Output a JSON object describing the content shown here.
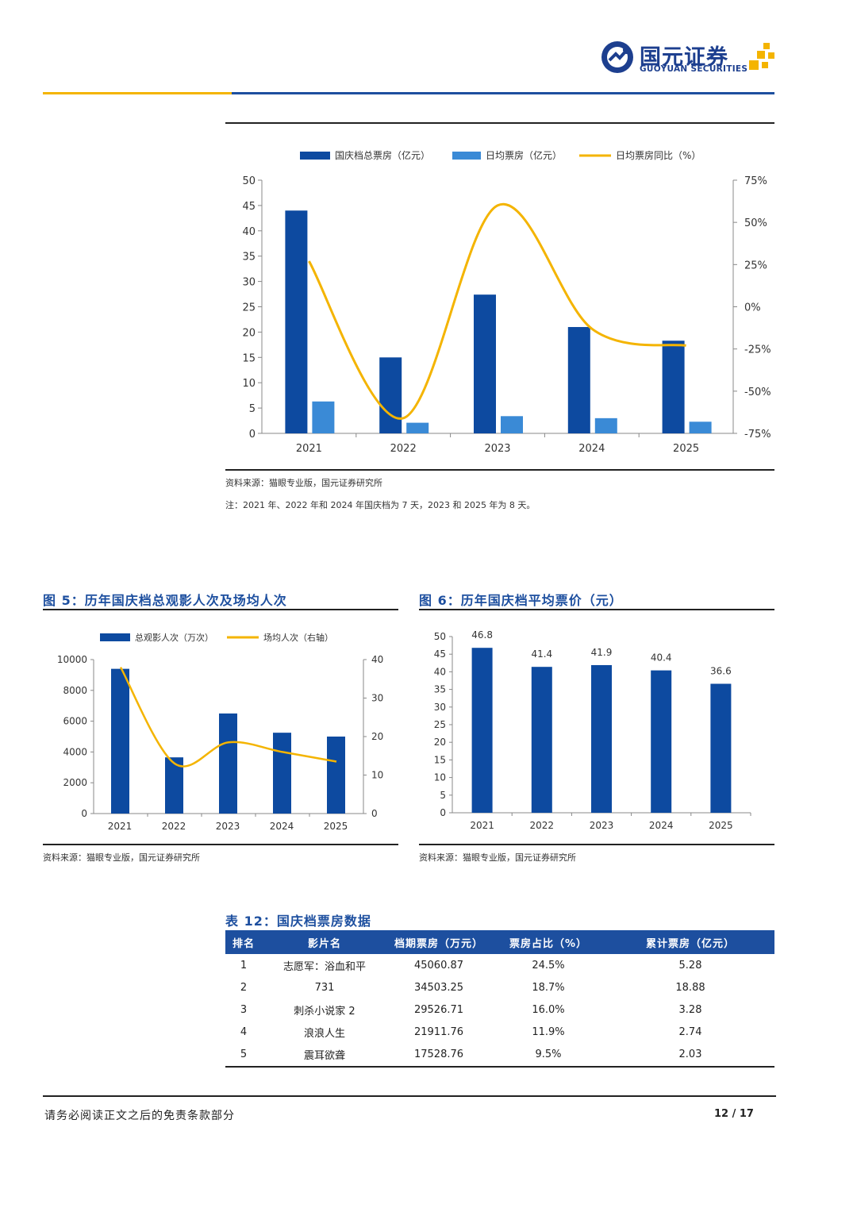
{
  "header": {
    "logo_cn": "国元证券",
    "logo_en": "GUOYUAN SECURITIES",
    "colors": {
      "brand_blue": "#1d4f9f",
      "gold": "#f4b400",
      "light_blue": "#3a8ad6"
    }
  },
  "top_chart": {
    "source": "资料来源：猫眼专业版，国元证券研究所",
    "note": "注：2021 年、2022 年和 2024 年国庆档为 7 天，2023 和 2025 年为 8 天。"
  },
  "fig5": {
    "title": "图 5：历年国庆档总观影人次及场均人次",
    "source": "资料来源：猫眼专业版，国元证券研究所"
  },
  "fig6": {
    "title": "图 6：历年国庆档平均票价（元）",
    "source": "资料来源：猫眼专业版，国元证券研究所"
  },
  "table12": {
    "title": "表 12：国庆档票房数据",
    "columns": [
      "排名",
      "影片名",
      "档期票房（万元）",
      "票房占比（%）",
      "累计票房（亿元）"
    ],
    "rows": [
      [
        "1",
        "志愿军：浴血和平",
        "45060.87",
        "24.5%",
        "5.28"
      ],
      [
        "2",
        "731",
        "34503.25",
        "18.7%",
        "18.88"
      ],
      [
        "3",
        "刺杀小说家 2",
        "29526.71",
        "16.0%",
        "3.28"
      ],
      [
        "4",
        "浪浪人生",
        "21911.76",
        "11.9%",
        "2.74"
      ],
      [
        "5",
        "震耳欲聋",
        "17528.76",
        "9.5%",
        "2.03"
      ]
    ]
  },
  "footer": {
    "disclaimer": "请务必阅读正文之后的免责条款部分",
    "page": "12 / 17"
  },
  "chart_data": [
    {
      "type": "bar",
      "categories": [
        "2021",
        "2022",
        "2023",
        "2024",
        "2025"
      ],
      "series": [
        {
          "name": "国庆档总票房（亿元）",
          "values": [
            44.0,
            15.0,
            27.4,
            21.0,
            18.3
          ],
          "color": "#0d4aa0",
          "axis": "left"
        },
        {
          "name": "日均票房（亿元）",
          "values": [
            6.3,
            2.1,
            3.4,
            3.0,
            2.3
          ],
          "color": "#3a8ad6",
          "axis": "left"
        },
        {
          "name": "日均票房同比（%）",
          "type": "line",
          "values": [
            27,
            -66,
            60,
            -13,
            -23
          ],
          "color": "#f4b400",
          "axis": "right"
        }
      ],
      "ylim": [
        0,
        50
      ],
      "yticks": [
        "0",
        "5",
        "10",
        "15",
        "20",
        "25",
        "30",
        "35",
        "40",
        "45",
        "50"
      ],
      "y2lim": [
        -75,
        75
      ],
      "y2ticks": [
        "-75%",
        "-50%",
        "-25%",
        "0%",
        "25%",
        "50%",
        "75%"
      ],
      "legend": "top"
    },
    {
      "type": "bar",
      "categories": [
        "2021",
        "2022",
        "2023",
        "2024",
        "2025"
      ],
      "series": [
        {
          "name": "总观影人次（万次）",
          "values": [
            9400,
            3650,
            6500,
            5250,
            5000
          ],
          "color": "#0d4aa0",
          "axis": "left"
        },
        {
          "name": "场均人次（右轴）",
          "type": "line",
          "values": [
            38,
            13,
            18.5,
            16,
            13.5
          ],
          "color": "#f4b400",
          "axis": "right"
        }
      ],
      "ylim": [
        0,
        10000
      ],
      "yticks": [
        "0",
        "2000",
        "4000",
        "6000",
        "8000",
        "10000"
      ],
      "y2lim": [
        0,
        40
      ],
      "y2ticks": [
        "0",
        "10",
        "20",
        "30",
        "40"
      ],
      "legend": "top"
    },
    {
      "type": "bar",
      "categories": [
        "2021",
        "2022",
        "2023",
        "2024",
        "2025"
      ],
      "values": [
        46.8,
        41.4,
        41.9,
        40.4,
        36.6
      ],
      "data_labels": [
        "46.8",
        "41.4",
        "41.9",
        "40.4",
        "36.6"
      ],
      "color": "#0d4aa0",
      "ylim": [
        0,
        50
      ],
      "yticks": [
        "0",
        "5",
        "10",
        "15",
        "20",
        "25",
        "30",
        "35",
        "40",
        "45",
        "50"
      ]
    }
  ]
}
